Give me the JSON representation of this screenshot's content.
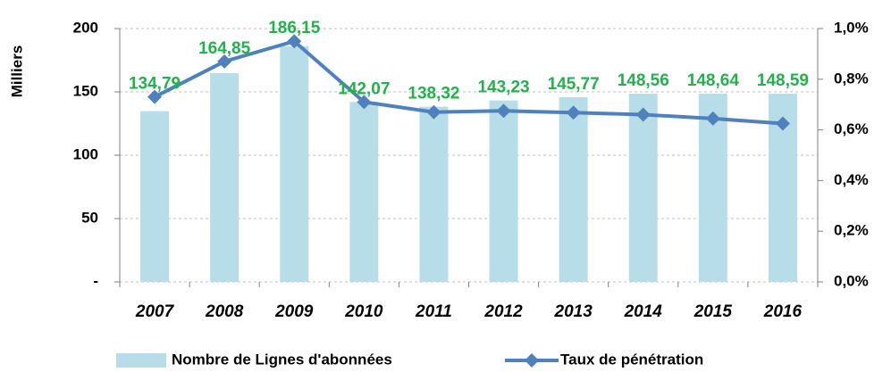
{
  "chart_data": {
    "type": "bar",
    "y_label": "Milliers",
    "categories": [
      "2007",
      "2008",
      "2009",
      "2010",
      "2011",
      "2012",
      "2013",
      "2014",
      "2015",
      "2016"
    ],
    "series": [
      {
        "name": "Nombre de Lignes d'abonnées",
        "type": "bar",
        "color": "#b7dde8",
        "values": [
          134.79,
          164.85,
          186.15,
          142.07,
          138.32,
          143.23,
          145.77,
          148.56,
          148.64,
          148.59
        ],
        "value_labels": [
          "134,79",
          "164,85",
          "186,15",
          "142,07",
          "138,32",
          "143,23",
          "145,77",
          "148,56",
          "148,64",
          "148,59"
        ],
        "label_color": "#22b14c"
      },
      {
        "name": "Taux de pénétration",
        "type": "line",
        "axis": "y2",
        "color": "#4f81bd",
        "values": [
          0.73,
          0.87,
          0.95,
          0.71,
          0.67,
          0.675,
          0.668,
          0.66,
          0.645,
          0.625
        ]
      }
    ],
    "ylim": [
      0,
      200
    ],
    "yticks": [
      {
        "value": 0,
        "label": "-"
      },
      50,
      100,
      150,
      200
    ],
    "y2lim": [
      0,
      1.0
    ],
    "y2ticks": [
      {
        "value": 0,
        "label": "0,0%"
      },
      {
        "value": 0.2,
        "label": "0,2%"
      },
      {
        "value": 0.4,
        "label": "0,4%"
      },
      {
        "value": 0.6,
        "label": "0,6%"
      },
      {
        "value": 0.8,
        "label": "0,8%"
      },
      {
        "value": 1.0,
        "label": "1,0%"
      }
    ],
    "grid": true,
    "legend": "bottom"
  }
}
